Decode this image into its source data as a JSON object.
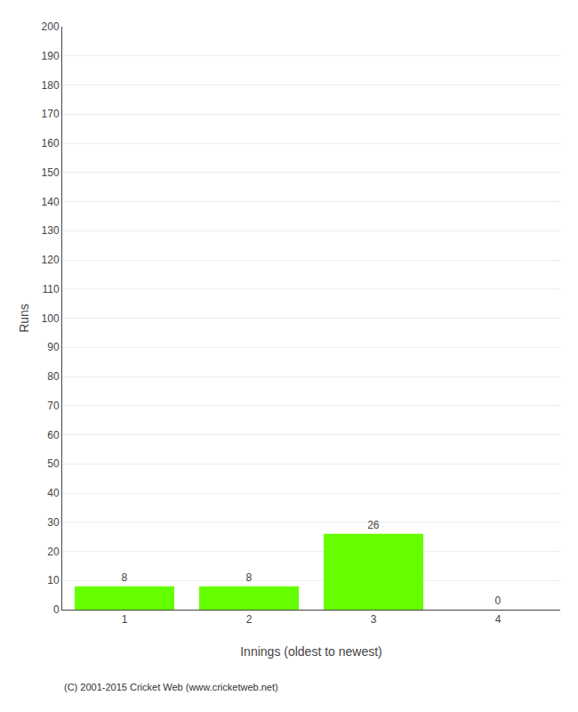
{
  "chart_data": {
    "type": "bar",
    "x": [
      1,
      2,
      3,
      4
    ],
    "values": [
      8,
      8,
      26,
      0
    ],
    "color": "#66ff00",
    "xlabel": "Innings (oldest to newest)",
    "ylabel": "Runs",
    "xlim": [
      0.5,
      4.5
    ],
    "xticks": [
      1,
      2,
      3,
      4
    ],
    "ylim": [
      0,
      200
    ],
    "yticks": [
      0,
      10,
      20,
      30,
      40,
      50,
      60,
      70,
      80,
      90,
      100,
      110,
      120,
      130,
      140,
      150,
      160,
      170,
      180,
      190,
      200
    ],
    "grid": true,
    "data_labels": true,
    "annotations": [
      "(C) 2001-2015 Cricket Web (www.cricketweb.net)"
    ]
  }
}
